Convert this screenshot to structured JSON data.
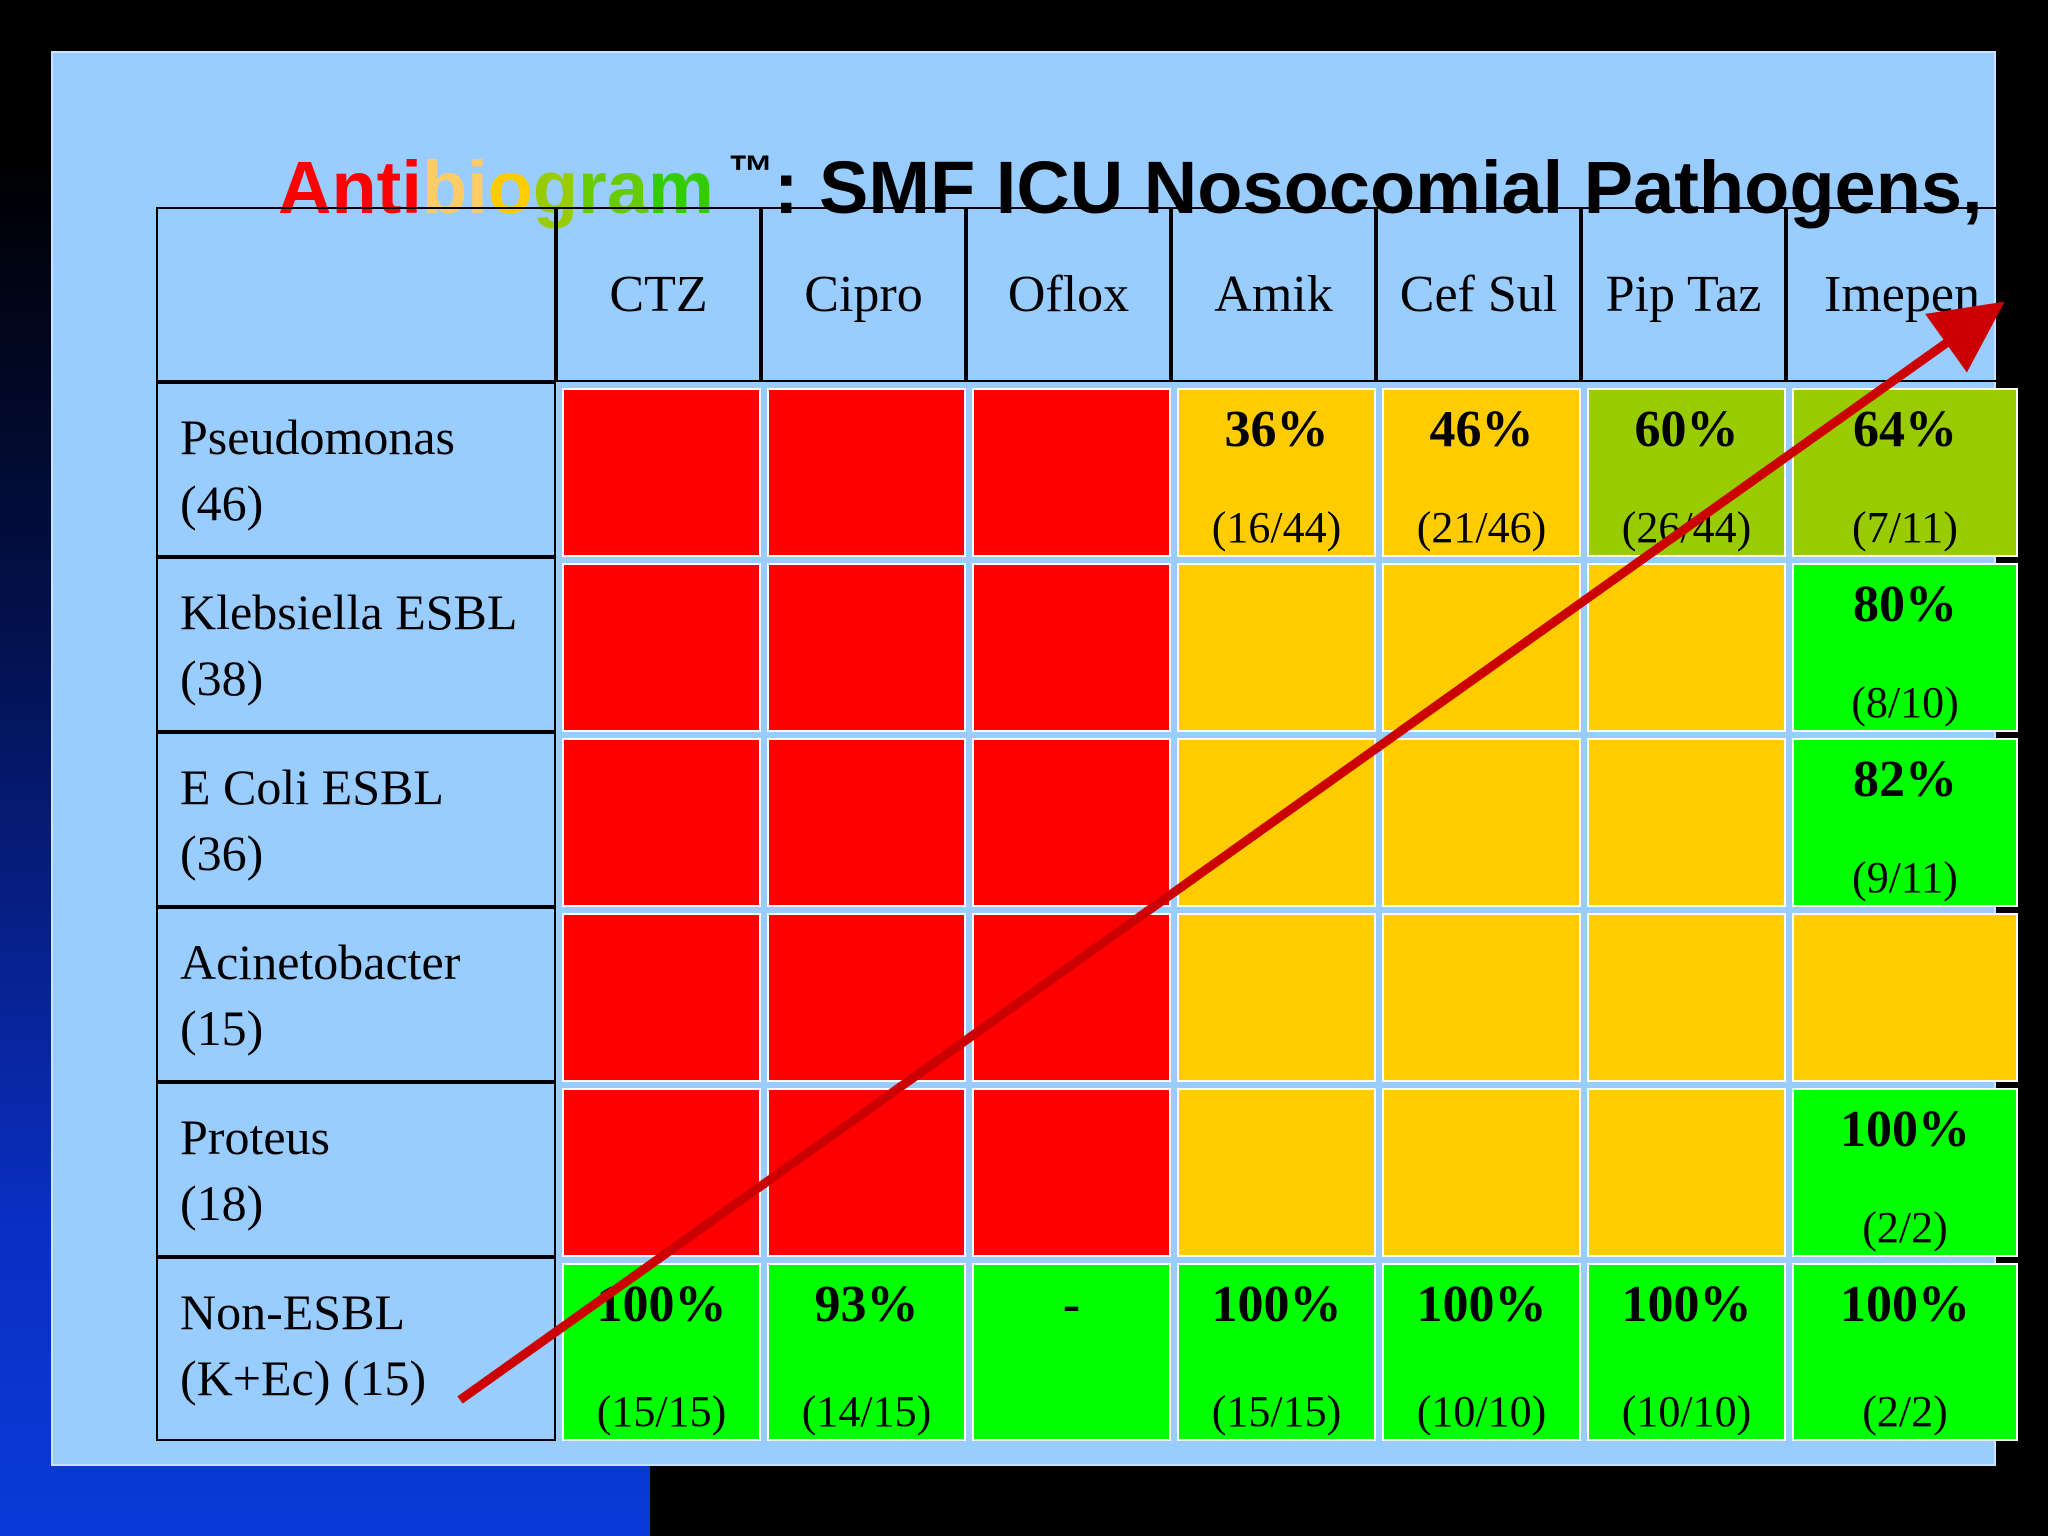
{
  "title": {
    "letters": [
      {
        "t": "A",
        "color": "#ff0000"
      },
      {
        "t": "n",
        "color": "#ff0000"
      },
      {
        "t": "t",
        "color": "#ff0000"
      },
      {
        "t": "i",
        "color": "#ff0000"
      },
      {
        "t": "b",
        "color": "#ffcc66"
      },
      {
        "t": "i",
        "color": "#ffcc66"
      },
      {
        "t": "o",
        "color": "#ffcc00"
      },
      {
        "t": "g",
        "color": "#99cc00"
      },
      {
        "t": "r",
        "color": "#66cc00"
      },
      {
        "t": "a",
        "color": "#66cc00"
      },
      {
        "t": "m",
        "color": "#33cc00"
      }
    ],
    "tm": "™",
    "rest": ": SMF ICU Nosocomial Pathogens,"
  },
  "columns": [
    "CTZ",
    "Cipro",
    "Oflox",
    "Amik",
    "Cef Sul",
    "Pip Taz",
    "Imepen"
  ],
  "rows": [
    {
      "label": [
        "Pseudomonas",
        "(46)"
      ],
      "cells": [
        {
          "color": "#ff0000"
        },
        {
          "color": "#ff0000"
        },
        {
          "color": "#ff0000"
        },
        {
          "color": "#ffcc00",
          "pct": "36%",
          "frac": "(16/44)"
        },
        {
          "color": "#ffcc00",
          "pct": "46%",
          "frac": "(21/46)"
        },
        {
          "color": "#99cc00",
          "pct": "60%",
          "frac": "(26/44)"
        },
        {
          "color": "#99cc00",
          "pct": "64%",
          "frac": "(7/11)"
        }
      ]
    },
    {
      "label": [
        "Klebsiella ESBL",
        "(38)"
      ],
      "cells": [
        {
          "color": "#ff0000"
        },
        {
          "color": "#ff0000"
        },
        {
          "color": "#ff0000"
        },
        {
          "color": "#ffcc00"
        },
        {
          "color": "#ffcc00"
        },
        {
          "color": "#ffcc00"
        },
        {
          "color": "#00ff00",
          "pct": "80%",
          "frac": "(8/10)"
        }
      ]
    },
    {
      "label": [
        "E Coli ESBL",
        "(36)"
      ],
      "cells": [
        {
          "color": "#ff0000"
        },
        {
          "color": "#ff0000"
        },
        {
          "color": "#ff0000"
        },
        {
          "color": "#ffcc00"
        },
        {
          "color": "#ffcc00"
        },
        {
          "color": "#ffcc00"
        },
        {
          "color": "#00ff00",
          "pct": "82%",
          "frac": "(9/11)"
        }
      ]
    },
    {
      "label": [
        "Acinetobacter",
        "(15)"
      ],
      "cells": [
        {
          "color": "#ff0000"
        },
        {
          "color": "#ff0000"
        },
        {
          "color": "#ff0000"
        },
        {
          "color": "#ffcc00"
        },
        {
          "color": "#ffcc00"
        },
        {
          "color": "#ffcc00"
        },
        {
          "color": "#ffcc00"
        }
      ]
    },
    {
      "label": [
        "Proteus",
        "(18)"
      ],
      "cells": [
        {
          "color": "#ff0000"
        },
        {
          "color": "#ff0000"
        },
        {
          "color": "#ff0000"
        },
        {
          "color": "#ffcc00"
        },
        {
          "color": "#ffcc00"
        },
        {
          "color": "#ffcc00"
        },
        {
          "color": "#00ff00",
          "pct": "100%",
          "frac": "(2/2)"
        }
      ]
    },
    {
      "label": [
        "Non-ESBL",
        "(K+Ec) (15)"
      ],
      "cells": [
        {
          "color": "#00ff00",
          "pct": "100%",
          "frac": "(15/15)"
        },
        {
          "color": "#00ff00",
          "pct": "93%",
          "frac": "(14/15)"
        },
        {
          "color": "#00ff00",
          "pct": "-"
        },
        {
          "color": "#00ff00",
          "pct": "100%",
          "frac": "(15/15)"
        },
        {
          "color": "#00ff00",
          "pct": "100%",
          "frac": "(10/10)"
        },
        {
          "color": "#00ff00",
          "pct": "100%",
          "frac": "(10/10)"
        },
        {
          "color": "#00ff00",
          "pct": "100%",
          "frac": "(2/2)"
        }
      ]
    }
  ],
  "colors": {
    "slide_bg": "#99ccff",
    "red": "#ff0000",
    "amber": "#ffcc00",
    "olive": "#99cc00",
    "green": "#00ff00",
    "arrow": "#cc0000"
  },
  "arrow": {
    "icon": "arrow-up-right-icon"
  }
}
